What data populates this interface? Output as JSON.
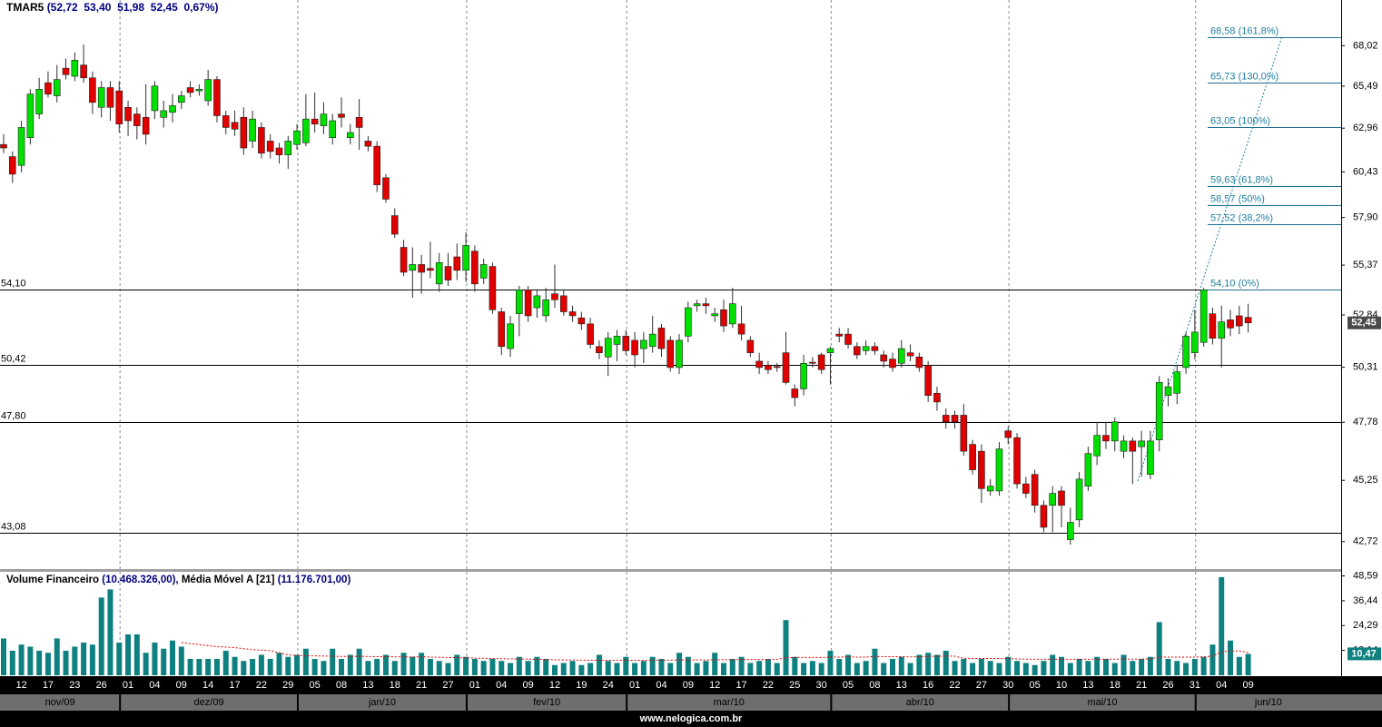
{
  "header": {
    "symbol": "TMAR5",
    "quote": "(52,72  53,40  51,98  52,45  0,67%)"
  },
  "footer": "www.nelogica.com.br",
  "chart_data": [
    {
      "type": "candlestick",
      "name": "TMAR5",
      "log_scale": true,
      "up_color": "#00e000",
      "down_color": "#e00000",
      "categories": [
        null,
        null,
        "12",
        null,
        null,
        "17",
        null,
        null,
        "23",
        null,
        null,
        "26",
        null,
        null,
        "01",
        null,
        null,
        "04",
        null,
        null,
        "09",
        null,
        null,
        "14",
        null,
        null,
        "17",
        null,
        null,
        "22",
        null,
        null,
        "29",
        null,
        null,
        "05",
        null,
        null,
        "08",
        null,
        null,
        "13",
        null,
        null,
        "18",
        null,
        null,
        "21",
        null,
        null,
        "27",
        null,
        null,
        "01",
        null,
        null,
        "04",
        null,
        null,
        "09",
        null,
        null,
        "12",
        null,
        null,
        "19",
        null,
        null,
        "24",
        null,
        null,
        "01",
        null,
        null,
        "04",
        null,
        null,
        "09",
        null,
        null,
        "12",
        null,
        null,
        "17",
        null,
        null,
        "22",
        null,
        null,
        "25",
        null,
        null,
        "30",
        null,
        null,
        "05",
        null,
        null,
        "08",
        null,
        null,
        "13",
        null,
        null,
        "16",
        null,
        null,
        "22",
        null,
        null,
        "27",
        null,
        null,
        "30",
        null,
        null,
        "05",
        null,
        null,
        "10",
        null,
        null,
        "13",
        null,
        null,
        "18",
        null,
        null,
        "21",
        null,
        null,
        "26",
        null,
        null,
        "31",
        null,
        null,
        "04",
        null,
        null,
        "09"
      ],
      "open": [
        62.0,
        61.3,
        60.8,
        62.4,
        63.8,
        65.7,
        64.9,
        66.6,
        66.1,
        66.8,
        66.0,
        64.2,
        65.4,
        65.2,
        64.2,
        63.8,
        63.6,
        64.0,
        63.6,
        63.9,
        64.5,
        65.4,
        65.2,
        64.6,
        65.9,
        63.7,
        63.3,
        63.6,
        62.2,
        63.0,
        62.2,
        61.8,
        61.4,
        62.0,
        62.1,
        63.5,
        63.1,
        62.4,
        63.8,
        62.4,
        63.6,
        62.2,
        61.9,
        60.1,
        58.0,
        56.3,
        55.1,
        55.4,
        55.2,
        54.4,
        55.3,
        55.8,
        55.1,
        56.1,
        54.7,
        55.3,
        53.0,
        51.2,
        52.9,
        54.1,
        53.2,
        52.8,
        53.9,
        53.8,
        53.0,
        52.7,
        52.4,
        51.3,
        50.8,
        51.4,
        51.8,
        51.6,
        51.2,
        51.3,
        52.2,
        51.6,
        50.3,
        51.8,
        53.3,
        53.4,
        52.8,
        53.1,
        52.4,
        52.4,
        51.6,
        50.6,
        50.4,
        50.35,
        51.0,
        49.3,
        49.3,
        50.55,
        50.9,
        51.0,
        51.9,
        51.9,
        51.3,
        51.1,
        51.3,
        50.9,
        50.7,
        50.5,
        51.0,
        50.8,
        50.4,
        49.1,
        48.1,
        48.1,
        48.1,
        46.8,
        46.5,
        44.8,
        44.8,
        47.4,
        47.1,
        45.1,
        45.5,
        44.2,
        44.2,
        44.8,
        42.8,
        43.6,
        45.0,
        46.3,
        47.2,
        46.95,
        46.5,
        46.95,
        46.7,
        45.5,
        47.0,
        49.0,
        49.1,
        50.3,
        51.0,
        51.5,
        52.9,
        51.7,
        52.6,
        52.8,
        52.72
      ],
      "high": [
        62.6,
        61.6,
        63.4,
        65.3,
        66.0,
        66.4,
        66.8,
        67.2,
        67.6,
        68.1,
        66.4,
        65.8,
        65.8,
        65.8,
        64.6,
        64.2,
        65.6,
        65.8,
        64.6,
        65.0,
        65.2,
        65.8,
        65.6,
        66.5,
        66.1,
        64.0,
        64.0,
        64.2,
        64.0,
        63.3,
        62.6,
        62.1,
        62.5,
        63.2,
        65.0,
        65.1,
        64.5,
        63.8,
        64.8,
        63.2,
        64.7,
        62.5,
        62.2,
        60.3,
        58.4,
        56.7,
        56.3,
        55.9,
        56.6,
        56.0,
        56.0,
        56.5,
        57.1,
        56.4,
        55.7,
        55.5,
        53.2,
        52.8,
        54.3,
        54.3,
        54.1,
        54.2,
        55.4,
        54.1,
        53.3,
        53.0,
        52.7,
        51.6,
        52.0,
        52.1,
        52.1,
        52.0,
        52.0,
        52.8,
        52.4,
        51.8,
        51.9,
        53.5,
        53.6,
        53.7,
        53.2,
        53.6,
        54.2,
        53.3,
        51.8,
        51.0,
        50.6,
        50.5,
        52.0,
        49.5,
        50.9,
        50.8,
        51.0,
        51.3,
        52.2,
        52.2,
        51.5,
        51.6,
        51.5,
        51.1,
        51.0,
        51.6,
        51.4,
        51.0,
        50.6,
        49.4,
        48.4,
        48.3,
        48.6,
        47.0,
        46.8,
        45.3,
        46.9,
        47.6,
        47.3,
        45.4,
        45.7,
        44.4,
        45.0,
        45.0,
        44.1,
        45.6,
        46.7,
        47.8,
        47.8,
        48.0,
        47.2,
        47.1,
        47.4,
        47.4,
        49.9,
        49.8,
        50.4,
        52.0,
        53.1,
        54.2,
        53.2,
        53.3,
        53.1,
        53.3,
        53.4
      ],
      "low": [
        61.5,
        59.8,
        60.4,
        62.0,
        63.5,
        64.8,
        64.5,
        65.9,
        65.8,
        65.7,
        63.8,
        63.6,
        63.4,
        62.7,
        62.5,
        62.3,
        62.0,
        63.5,
        63.0,
        63.3,
        64.1,
        64.8,
        64.9,
        64.3,
        63.3,
        62.6,
        62.5,
        61.4,
        61.8,
        61.2,
        61.2,
        60.9,
        60.6,
        61.7,
        61.9,
        62.7,
        62.6,
        62.0,
        63.0,
        62.0,
        61.7,
        61.6,
        59.3,
        58.7,
        56.8,
        54.8,
        53.7,
        53.9,
        54.7,
        54.0,
        54.3,
        54.6,
        54.5,
        54.0,
        54.4,
        52.9,
        50.9,
        50.8,
        51.8,
        52.5,
        52.7,
        52.5,
        53.2,
        52.8,
        52.5,
        52.1,
        51.2,
        50.7,
        49.9,
        50.6,
        50.9,
        50.3,
        50.5,
        51.0,
        50.8,
        50.1,
        50.0,
        51.5,
        53.0,
        52.9,
        52.5,
        52.0,
        52.2,
        51.6,
        50.8,
        50.0,
        50.0,
        50.1,
        49.5,
        48.5,
        49.0,
        50.3,
        50.0,
        49.5,
        51.5,
        51.2,
        50.7,
        50.9,
        50.9,
        50.3,
        50.1,
        50.3,
        50.6,
        50.1,
        48.7,
        48.3,
        47.5,
        47.5,
        46.3,
        45.5,
        44.3,
        44.6,
        44.6,
        46.8,
        44.9,
        44.5,
        43.9,
        43.1,
        43.1,
        43.3,
        42.6,
        43.3,
        44.8,
        45.9,
        46.6,
        46.5,
        46.2,
        45.1,
        45.4,
        45.3,
        46.5,
        48.5,
        48.6,
        50.0,
        50.7,
        51.3,
        51.4,
        50.3,
        51.8,
        51.9,
        51.98
      ],
      "close": [
        61.8,
        60.3,
        63.0,
        65.0,
        65.3,
        65.0,
        65.9,
        66.2,
        67.1,
        66.0,
        64.5,
        65.4,
        64.2,
        63.2,
        63.4,
        63.1,
        62.6,
        65.5,
        64.0,
        64.3,
        64.9,
        65.1,
        65.3,
        65.9,
        63.7,
        63.0,
        62.9,
        61.8,
        63.5,
        61.5,
        61.6,
        61.4,
        62.2,
        62.8,
        63.5,
        63.2,
        63.8,
        63.4,
        63.6,
        62.7,
        63.0,
        61.9,
        59.7,
        58.9,
        57.0,
        55.0,
        55.4,
        55.0,
        55.1,
        55.5,
        54.6,
        55.1,
        56.4,
        54.4,
        55.4,
        53.1,
        51.3,
        52.4,
        54.1,
        52.8,
        53.8,
        53.6,
        53.6,
        53.0,
        52.8,
        52.4,
        51.4,
        51.0,
        51.7,
        51.8,
        51.1,
        50.9,
        51.6,
        51.9,
        51.2,
        50.3,
        51.6,
        53.2,
        53.4,
        53.3,
        52.9,
        52.3,
        53.4,
        51.9,
        51.0,
        50.3,
        50.2,
        50.3,
        49.6,
        48.9,
        50.5,
        50.5,
        50.2,
        51.2,
        51.8,
        51.4,
        50.9,
        51.3,
        51.1,
        50.6,
        50.3,
        51.2,
        50.85,
        50.3,
        49.0,
        48.7,
        47.8,
        47.8,
        46.5,
        45.7,
        44.9,
        45.0,
        46.6,
        47.1,
        45.1,
        44.7,
        44.2,
        43.3,
        44.7,
        44.2,
        43.5,
        45.3,
        46.4,
        47.2,
        46.95,
        47.8,
        46.95,
        46.5,
        46.95,
        46.95,
        49.6,
        49.4,
        50.1,
        51.8,
        52.0,
        54.1,
        51.7,
        52.5,
        52.2,
        52.3,
        52.45
      ],
      "ylim": [
        41.6,
        71.0
      ],
      "yticks": [
        {
          "value": 68.02,
          "label": "68,02"
        },
        {
          "value": 65.49,
          "label": "65,49"
        },
        {
          "value": 62.96,
          "label": "62,96"
        },
        {
          "value": 60.43,
          "label": "60,43"
        },
        {
          "value": 57.9,
          "label": "57,90"
        },
        {
          "value": 55.37,
          "label": "55,37"
        },
        {
          "value": 52.84,
          "label": "52,84"
        },
        {
          "value": 50.31,
          "label": "50,31"
        },
        {
          "value": 47.78,
          "label": "47,78"
        },
        {
          "value": 45.25,
          "label": "45,25"
        },
        {
          "value": 42.72,
          "label": "42,72"
        }
      ],
      "hlines": [
        {
          "value": 54.1,
          "label": "54,10"
        },
        {
          "value": 50.42,
          "label": "50,42"
        },
        {
          "value": 47.8,
          "label": "47,80"
        },
        {
          "value": 43.08,
          "label": "43,08"
        }
      ],
      "fibonacci": [
        {
          "value": 68.58,
          "label": "68,58 (161,8%)"
        },
        {
          "value": 65.73,
          "label": "65,73 (130,0%)"
        },
        {
          "value": 63.05,
          "label": "63,05 (100%)"
        },
        {
          "value": 59.63,
          "label": "59,63 (61,8%)"
        },
        {
          "value": 58.57,
          "label": "58,57 (50%)"
        },
        {
          "value": 57.52,
          "label": "57,52 (38,2%)"
        },
        {
          "value": 54.1,
          "label": "54,10 (0%)"
        }
      ],
      "last_value": {
        "value": 52.45,
        "label": "52,45"
      },
      "months": [
        {
          "label": "nov/09",
          "start": 0
        },
        {
          "label": "dez/09",
          "start": 14
        },
        {
          "label": "jan/10",
          "start": 34
        },
        {
          "label": "fev/10",
          "start": 53
        },
        {
          "label": "mar/10",
          "start": 71
        },
        {
          "label": "abr/10",
          "start": 94
        },
        {
          "label": "mai/10",
          "start": 114
        },
        {
          "label": "jun/10",
          "start": 135
        }
      ]
    },
    {
      "type": "bar",
      "series": [
        {
          "name": "Volume Financeiro",
          "value_label": "(10.468.326,00),",
          "color": "#0f8080",
          "values": [
            18,
            12,
            15,
            14,
            12,
            11,
            18,
            12,
            14,
            16,
            15,
            38,
            42,
            16,
            20,
            20,
            11,
            16,
            13,
            17,
            14,
            8,
            8,
            8,
            8,
            12,
            9,
            7,
            8,
            10,
            8,
            11,
            9,
            10,
            13,
            8,
            7,
            13,
            8,
            10,
            13,
            7,
            8,
            10,
            7,
            11,
            9,
            11,
            8,
            7,
            6,
            10,
            9,
            8,
            7,
            8,
            7,
            6,
            9,
            7,
            9,
            8,
            5,
            6,
            7,
            5,
            6,
            10,
            7,
            6,
            9,
            6,
            7,
            9,
            8,
            6,
            11,
            9,
            6,
            7,
            11,
            6,
            8,
            9,
            6,
            7,
            8,
            6,
            27,
            9,
            6,
            7,
            6,
            12,
            8,
            10,
            6,
            7,
            13,
            6,
            8,
            9,
            6,
            10,
            11,
            10,
            12,
            7,
            8,
            6,
            8,
            7,
            6,
            9,
            7,
            6,
            5,
            7,
            10,
            9,
            6,
            8,
            7,
            9,
            8,
            6,
            10,
            7,
            8,
            9,
            26,
            8,
            7,
            6,
            8,
            9,
            15,
            48,
            17,
            9,
            10.47
          ]
        },
        {
          "name": "Média Móvel A [21]",
          "value_label": "(11.176.701,00)",
          "color": "#e00000",
          "values": [
            null,
            null,
            null,
            null,
            null,
            null,
            null,
            null,
            null,
            null,
            null,
            null,
            null,
            null,
            null,
            null,
            null,
            null,
            null,
            null,
            16,
            15.5,
            15,
            14.5,
            14,
            13.8,
            13.5,
            13,
            12.5,
            12.3,
            12,
            11,
            10,
            9.7,
            9.5,
            9.5,
            9.4,
            9.3,
            9.2,
            9.2,
            9.3,
            9.2,
            9.1,
            9.1,
            9,
            9,
            9,
            9,
            8.9,
            8.8,
            8.7,
            8.6,
            8.5,
            8.4,
            8.3,
            8.2,
            8.1,
            8,
            8,
            7.9,
            7.8,
            7.7,
            7.6,
            7.5,
            7.5,
            7.4,
            7.4,
            7.4,
            7.3,
            7.3,
            7.3,
            7.3,
            7.3,
            7.4,
            7.4,
            7.4,
            7.5,
            7.5,
            7.5,
            7.5,
            7.6,
            7.6,
            7.6,
            7.7,
            7.7,
            7.7,
            7.7,
            7.7,
            8.6,
            8.7,
            8.7,
            8.7,
            8.7,
            8.9,
            8.9,
            9,
            8.9,
            8.9,
            9.2,
            9.1,
            9.1,
            9.1,
            9,
            9.1,
            9.2,
            9.3,
            9.4,
            9.3,
            8.3,
            8.2,
            8.2,
            8.2,
            8.2,
            8.1,
            8,
            7.9,
            7.8,
            7.8,
            7.9,
            7.9,
            7.8,
            7.8,
            7.8,
            7.9,
            7.9,
            7.9,
            8,
            7.9,
            7.9,
            8,
            8.9,
            8.9,
            8.9,
            8.9,
            8.9,
            9,
            9.4,
            11.4,
            11.9,
            11.9,
            11.18
          ]
        }
      ],
      "ylim": [
        0,
        50.6
      ],
      "yticks": [
        {
          "value": 48.59,
          "label": "48,59"
        },
        {
          "value": 36.44,
          "label": "36,44"
        },
        {
          "value": 24.29,
          "label": "24,29"
        },
        {
          "value": 12.14,
          "label": "12,14"
        }
      ],
      "last_value": {
        "value": 10.47,
        "label": "10,47"
      }
    }
  ]
}
